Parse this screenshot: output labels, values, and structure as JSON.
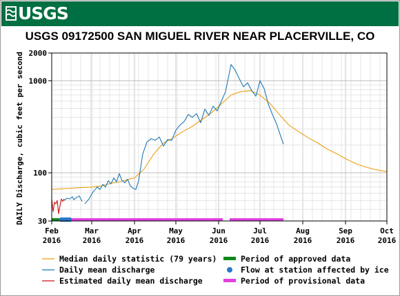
{
  "header": {
    "logo_text": "USGS",
    "title": "USGS 09172500 SAN MIGUEL RIVER NEAR PLACERVILLE, CO"
  },
  "colors": {
    "banner": "#006f41",
    "median": "#e8a010",
    "daily_mean": "#1f77b4",
    "estimated": "#cc1111",
    "approved": "#0b8a1a",
    "ice": "#2a78c8",
    "provisional": "#e040e0"
  },
  "chart_data": {
    "type": "line",
    "ylabel": "DAILY Discharge, cubic feet per second",
    "y_scale": "log",
    "ylim": [
      30,
      2000
    ],
    "y_ticks": [
      {
        "value": 30,
        "label": "30"
      },
      {
        "value": 100,
        "label": "100"
      },
      {
        "value": 1000,
        "label": "1000"
      },
      {
        "value": 2000,
        "label": "2000"
      }
    ],
    "xlim": [
      "2016-02-01",
      "2016-10-01"
    ],
    "x_ticks": [
      {
        "date": "2016-02-01",
        "month": "Feb",
        "year": "2016"
      },
      {
        "date": "2016-03-01",
        "month": "Mar",
        "year": "2016"
      },
      {
        "date": "2016-04-01",
        "month": "Apr",
        "year": "2016"
      },
      {
        "date": "2016-05-01",
        "month": "May",
        "year": "2016"
      },
      {
        "date": "2016-06-01",
        "month": "Jun",
        "year": "2016"
      },
      {
        "date": "2016-07-01",
        "month": "Jul",
        "year": "2016"
      },
      {
        "date": "2016-08-01",
        "month": "Aug",
        "year": "2016"
      },
      {
        "date": "2016-09-01",
        "month": "Sep",
        "year": "2016"
      },
      {
        "date": "2016-10-01",
        "month": "Oct",
        "year": "2016"
      }
    ],
    "grid": true,
    "series": [
      {
        "name": "Median daily statistic (79 years)",
        "color": "#e8a010",
        "points": [
          [
            "2016-02-01",
            66
          ],
          [
            "2016-02-08",
            67
          ],
          [
            "2016-02-15",
            68
          ],
          [
            "2016-02-22",
            69
          ],
          [
            "2016-03-01",
            70
          ],
          [
            "2016-03-08",
            72
          ],
          [
            "2016-03-15",
            77
          ],
          [
            "2016-03-22",
            80
          ],
          [
            "2016-03-29",
            86
          ],
          [
            "2016-04-01",
            88
          ],
          [
            "2016-04-08",
            110
          ],
          [
            "2016-04-15",
            160
          ],
          [
            "2016-04-22",
            210
          ],
          [
            "2016-04-29",
            240
          ],
          [
            "2016-05-06",
            280
          ],
          [
            "2016-05-13",
            320
          ],
          [
            "2016-05-20",
            380
          ],
          [
            "2016-05-27",
            450
          ],
          [
            "2016-06-03",
            560
          ],
          [
            "2016-06-10",
            700
          ],
          [
            "2016-06-17",
            760
          ],
          [
            "2016-06-24",
            780
          ],
          [
            "2016-07-01",
            700
          ],
          [
            "2016-07-08",
            570
          ],
          [
            "2016-07-15",
            430
          ],
          [
            "2016-07-22",
            330
          ],
          [
            "2016-07-29",
            280
          ],
          [
            "2016-08-05",
            240
          ],
          [
            "2016-08-12",
            210
          ],
          [
            "2016-08-19",
            180
          ],
          [
            "2016-08-26",
            160
          ],
          [
            "2016-09-02",
            140
          ],
          [
            "2016-09-09",
            125
          ],
          [
            "2016-09-16",
            115
          ],
          [
            "2016-09-23",
            108
          ],
          [
            "2016-10-01",
            103
          ]
        ]
      },
      {
        "name": "Daily mean discharge",
        "color": "#1f77b4",
        "points": [
          [
            "2016-02-25",
            46
          ],
          [
            "2016-02-28",
            52
          ],
          [
            "2016-03-02",
            62
          ],
          [
            "2016-03-05",
            70
          ],
          [
            "2016-03-07",
            66
          ],
          [
            "2016-03-09",
            75
          ],
          [
            "2016-03-11",
            70
          ],
          [
            "2016-03-13",
            82
          ],
          [
            "2016-03-15",
            76
          ],
          [
            "2016-03-17",
            88
          ],
          [
            "2016-03-19",
            80
          ],
          [
            "2016-03-21",
            98
          ],
          [
            "2016-03-23",
            82
          ],
          [
            "2016-03-25",
            78
          ],
          [
            "2016-03-27",
            85
          ],
          [
            "2016-03-29",
            72
          ],
          [
            "2016-03-31",
            68
          ],
          [
            "2016-04-02",
            66
          ],
          [
            "2016-04-04",
            82
          ],
          [
            "2016-04-07",
            160
          ],
          [
            "2016-04-10",
            215
          ],
          [
            "2016-04-13",
            235
          ],
          [
            "2016-04-16",
            225
          ],
          [
            "2016-04-19",
            245
          ],
          [
            "2016-04-22",
            195
          ],
          [
            "2016-04-25",
            230
          ],
          [
            "2016-04-28",
            225
          ],
          [
            "2016-05-01",
            290
          ],
          [
            "2016-05-04",
            330
          ],
          [
            "2016-05-07",
            360
          ],
          [
            "2016-05-10",
            430
          ],
          [
            "2016-05-13",
            400
          ],
          [
            "2016-05-16",
            440
          ],
          [
            "2016-05-19",
            350
          ],
          [
            "2016-05-22",
            490
          ],
          [
            "2016-05-25",
            420
          ],
          [
            "2016-05-28",
            530
          ],
          [
            "2016-05-31",
            470
          ],
          [
            "2016-06-03",
            600
          ],
          [
            "2016-06-06",
            760
          ],
          [
            "2016-06-10",
            1500
          ],
          [
            "2016-06-13",
            1300
          ],
          [
            "2016-06-16",
            1050
          ],
          [
            "2016-06-19",
            860
          ],
          [
            "2016-06-22",
            950
          ],
          [
            "2016-06-25",
            780
          ],
          [
            "2016-06-28",
            680
          ],
          [
            "2016-07-01",
            1000
          ],
          [
            "2016-07-04",
            820
          ],
          [
            "2016-07-07",
            560
          ],
          [
            "2016-07-10",
            430
          ],
          [
            "2016-07-13",
            340
          ],
          [
            "2016-07-16",
            250
          ],
          [
            "2016-07-18",
            205
          ]
        ]
      },
      {
        "name": "Estimated daily mean discharge",
        "color": "#cc1111",
        "points": [
          [
            "2016-02-01",
            52
          ],
          [
            "2016-02-02",
            38
          ],
          [
            "2016-02-03",
            48
          ],
          [
            "2016-02-04",
            46
          ],
          [
            "2016-02-05",
            50
          ],
          [
            "2016-02-06",
            36
          ],
          [
            "2016-02-07",
            44
          ],
          [
            "2016-02-08",
            52
          ],
          [
            "2016-02-09",
            49
          ],
          [
            "2016-02-10",
            52
          ]
        ]
      },
      {
        "name": "Daily mean discharge (ice-affected reach)",
        "color": "#1f77b4",
        "legend": false,
        "points": [
          [
            "2016-02-10",
            50
          ],
          [
            "2016-02-12",
            53
          ],
          [
            "2016-02-14",
            52
          ],
          [
            "2016-02-16",
            55
          ],
          [
            "2016-02-17",
            51
          ],
          [
            "2016-02-19",
            54
          ],
          [
            "2016-02-21",
            56
          ],
          [
            "2016-02-23",
            49
          ]
        ]
      }
    ],
    "period_bars": [
      {
        "name": "Period of approved data",
        "color": "#0b8a1a",
        "start": "2016-02-01",
        "end": "2016-02-13"
      },
      {
        "name": "Period of provisional data",
        "color": "#e040e0",
        "start": "2016-02-13",
        "end": "2016-06-04"
      },
      {
        "name": "Period of provisional data",
        "color": "#e040e0",
        "start": "2016-06-09",
        "end": "2016-07-18"
      }
    ],
    "ice_markers": [
      {
        "start": "2016-02-08",
        "end": "2016-02-15"
      }
    ]
  },
  "legend": {
    "items": [
      {
        "label": "Median daily statistic (79 years)",
        "kind": "line",
        "color": "#e8a010"
      },
      {
        "label": "Daily mean discharge",
        "kind": "line",
        "color": "#1f77b4"
      },
      {
        "label": "Estimated daily mean discharge",
        "kind": "line",
        "color": "#cc1111"
      },
      {
        "label": "Period of approved data",
        "kind": "bar",
        "color": "#0b8a1a"
      },
      {
        "label": "Flow at station affected by ice",
        "kind": "dot",
        "color": "#2a78c8"
      },
      {
        "label": "Period of provisional data",
        "kind": "bar",
        "color": "#e040e0"
      }
    ]
  }
}
